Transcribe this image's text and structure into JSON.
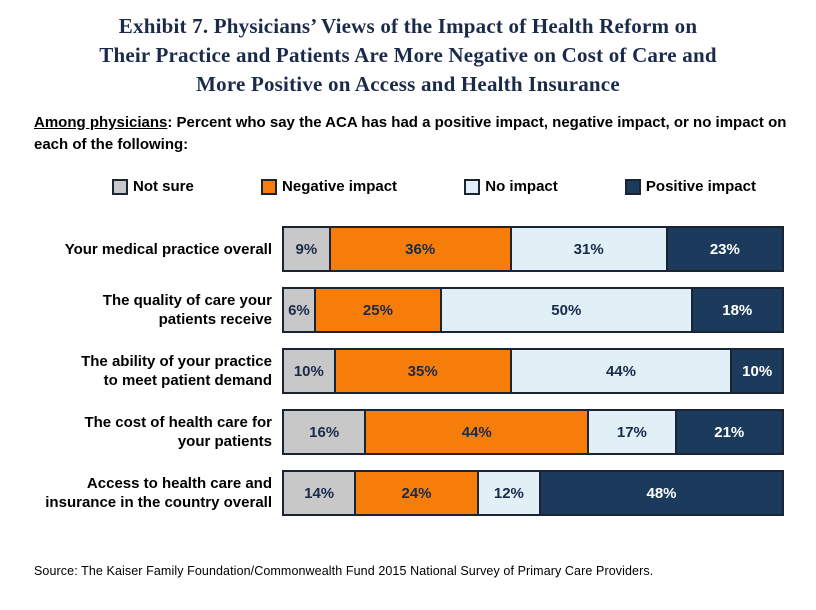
{
  "title": {
    "lines": [
      "Exhibit 7. Physicians’ Views of the Impact of Health Reform on",
      "Their Practice and Patients Are More Negative on Cost of Care and",
      "More Positive on Access and Health Insurance"
    ],
    "color": "#1a2a4a"
  },
  "subtitle": {
    "underlined": "Among physicians",
    "rest": ": Percent who say the ACA has had a positive impact, negative impact, or no impact on each of the following:"
  },
  "legend": {
    "border_color": "#1a2433",
    "items": [
      {
        "label": "Not sure",
        "color": "#c8c8c8"
      },
      {
        "label": "Negative impact",
        "color": "#f77d0a"
      },
      {
        "label": "No impact",
        "color": "#e1eff7"
      },
      {
        "label": "Positive impact",
        "color": "#1b3a5c"
      }
    ]
  },
  "chart_data": {
    "type": "bar",
    "orientation": "horizontal",
    "stacked": true,
    "unit": "%",
    "xlim": [
      0,
      100
    ],
    "value_labels": "inside",
    "legend_position": "top",
    "categories": [
      "Your medical practice overall",
      "The quality of care your\npatients receive",
      "The ability of your practice\nto meet patient demand",
      "The cost of health care for\nyour patients",
      "Access to health care and\ninsurance in the country overall"
    ],
    "series": [
      {
        "name": "Not sure",
        "key": "not-sure",
        "color": "#c8c8c8",
        "text_color": "#1a2a4a",
        "values": [
          9,
          6,
          10,
          16,
          14
        ]
      },
      {
        "name": "Negative impact",
        "key": "negative-impact",
        "color": "#f77d0a",
        "text_color": "#1a2a4a",
        "values": [
          36,
          25,
          35,
          44,
          24
        ]
      },
      {
        "name": "No impact",
        "key": "no-impact",
        "color": "#e1eff7",
        "text_color": "#1a2a4a",
        "values": [
          31,
          50,
          44,
          17,
          12
        ]
      },
      {
        "name": "Positive impact",
        "key": "positive-impact",
        "color": "#1b3a5c",
        "text_color": "#ffffff",
        "values": [
          23,
          18,
          10,
          21,
          48
        ]
      }
    ]
  },
  "source": "Source: The Kaiser Family Foundation/Commonwealth Fund 2015 National Survey of Primary Care Providers."
}
